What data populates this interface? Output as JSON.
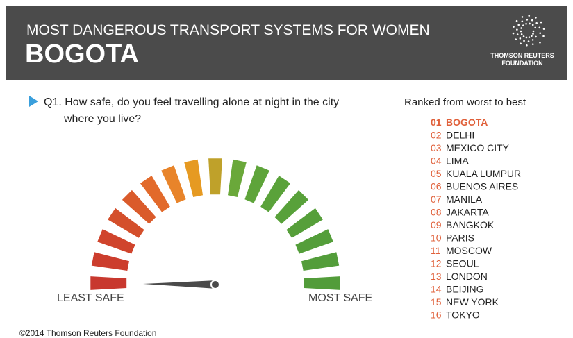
{
  "header": {
    "subtitle": "MOST DANGEROUS TRANSPORT SYSTEMS FOR WOMEN",
    "title": "BOGOTA"
  },
  "logo": {
    "line1": "THOMSON REUTERS",
    "line2": "FOUNDATION"
  },
  "question": {
    "lines": [
      "Q1. How safe, do you feel travelling alone at night in the city",
      "where you live?"
    ]
  },
  "gauge": {
    "left_label": "LEAST SAFE",
    "right_label": "MOST SAFE"
  },
  "ranking": {
    "heading": "Ranked from worst to best",
    "items": [
      {
        "rank": "01",
        "name": "BOGOTA"
      },
      {
        "rank": "02",
        "name": "DELHI"
      },
      {
        "rank": "03",
        "name": "MEXICO CITY"
      },
      {
        "rank": "04",
        "name": "LIMA"
      },
      {
        "rank": "05",
        "name": "KUALA LUMPUR"
      },
      {
        "rank": "06",
        "name": "BUENOS AIRES"
      },
      {
        "rank": "07",
        "name": "MANILA"
      },
      {
        "rank": "08",
        "name": "JAKARTA"
      },
      {
        "rank": "09",
        "name": "BANGKOK"
      },
      {
        "rank": "10",
        "name": "PARIS"
      },
      {
        "rank": "11",
        "name": "MOSCOW"
      },
      {
        "rank": "12",
        "name": "SEOUL"
      },
      {
        "rank": "13",
        "name": "LONDON"
      },
      {
        "rank": "14",
        "name": "BEIJING"
      },
      {
        "rank": "15",
        "name": "NEW YORK"
      },
      {
        "rank": "16",
        "name": "TOKYO"
      }
    ]
  },
  "footer": "©2014 Thomson Reuters Foundation"
}
